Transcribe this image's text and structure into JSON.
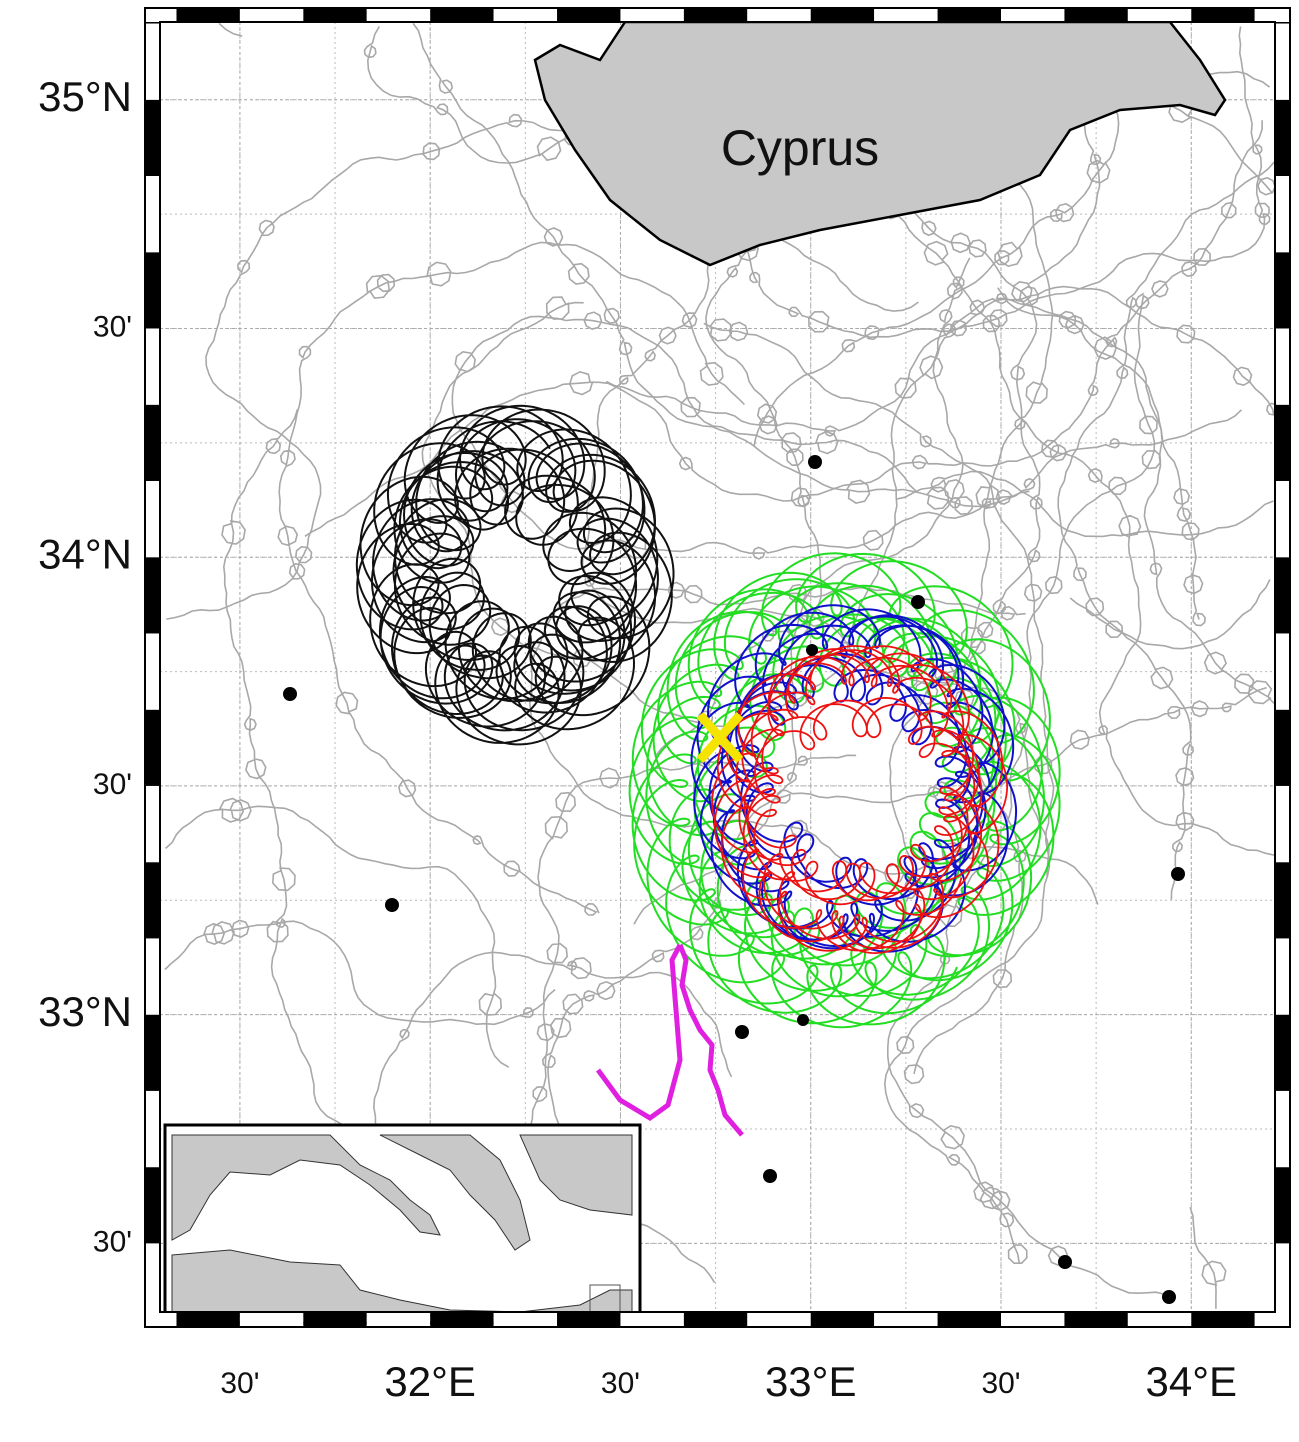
{
  "map": {
    "land_label": "Cyprus",
    "xlim": [
      31.29,
      34.22
    ],
    "ylim": [
      32.35,
      35.17
    ],
    "lon_ticks": [
      {
        "value": 31.5,
        "label": "30'"
      },
      {
        "value": 32,
        "label": "32°E"
      },
      {
        "value": 32.5,
        "label": "30'"
      },
      {
        "value": 33,
        "label": "33°E"
      },
      {
        "value": 33.5,
        "label": "30'"
      },
      {
        "value": 34,
        "label": "34°E"
      }
    ],
    "lat_ticks": [
      {
        "value": 35,
        "label": "35°N"
      },
      {
        "value": 34.5,
        "label": "30'"
      },
      {
        "value": 34,
        "label": "34°N"
      },
      {
        "value": 33.5,
        "label": "30'"
      },
      {
        "value": 33,
        "label": "33°N"
      },
      {
        "value": 32.5,
        "label": "30'"
      }
    ]
  }
}
